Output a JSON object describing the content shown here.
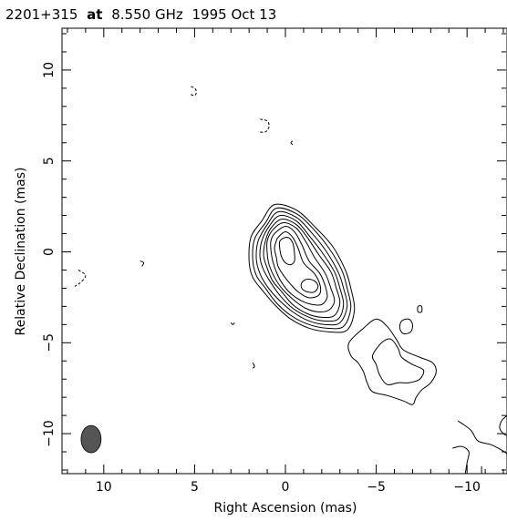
{
  "chart_data": {
    "type": "contour",
    "title": {
      "source": "2201+315",
      "connector": "at",
      "frequency": "8.550 GHz",
      "date": "1995 Oct 13"
    },
    "xlabel": "Right Ascension  (mas)",
    "ylabel": "Relative Declination  (mas)",
    "xlim": [
      12.3,
      -12.2
    ],
    "ylim": [
      -12.2,
      12.3
    ],
    "x_ticks": [
      10,
      5,
      0,
      -5,
      -10
    ],
    "x_tick_labels": [
      "10",
      "5",
      "0",
      "−5",
      "−10"
    ],
    "y_ticks": [
      10,
      5,
      0,
      -5,
      -10
    ],
    "y_tick_labels": [
      "10",
      "5",
      "0",
      "−5",
      "−10"
    ],
    "grid": false,
    "beam": {
      "x": 10.7,
      "y": -10.3,
      "major_mas": 1.5,
      "minor_mas": 1.1,
      "pa_deg": 0,
      "fill": "#555555"
    },
    "core_contours": [
      {
        "level": 1,
        "points": [
          [
            1.3,
            1.7
          ],
          [
            0.6,
            2.6
          ],
          [
            -0.6,
            2.3
          ],
          [
            -1.6,
            1.4
          ],
          [
            -2.6,
            0.3
          ],
          [
            -3.3,
            -1.0
          ],
          [
            -3.6,
            -2.0
          ],
          [
            -3.8,
            -3.2
          ],
          [
            -3.4,
            -4.3
          ],
          [
            -2.4,
            -4.4
          ],
          [
            -1.3,
            -4.2
          ],
          [
            -0.3,
            -3.7
          ],
          [
            0.5,
            -3.0
          ],
          [
            1.2,
            -2.2
          ],
          [
            1.8,
            -1.4
          ],
          [
            2.0,
            -0.5
          ],
          [
            1.9,
            0.8
          ]
        ]
      },
      {
        "level": 2,
        "points": [
          [
            1.1,
            1.6
          ],
          [
            0.5,
            2.4
          ],
          [
            -0.6,
            2.1
          ],
          [
            -1.5,
            1.3
          ],
          [
            -2.4,
            0.2
          ],
          [
            -3.1,
            -1.0
          ],
          [
            -3.4,
            -2.0
          ],
          [
            -3.6,
            -3.1
          ],
          [
            -3.2,
            -4.1
          ],
          [
            -2.3,
            -4.2
          ],
          [
            -1.3,
            -4.0
          ],
          [
            -0.3,
            -3.5
          ],
          [
            0.5,
            -2.8
          ],
          [
            1.1,
            -2.0
          ],
          [
            1.6,
            -1.3
          ],
          [
            1.8,
            -0.4
          ],
          [
            1.7,
            0.7
          ]
        ]
      },
      {
        "level": 3,
        "points": [
          [
            1.0,
            1.5
          ],
          [
            0.4,
            2.2
          ],
          [
            -0.6,
            1.9
          ],
          [
            -1.4,
            1.1
          ],
          [
            -2.2,
            0.1
          ],
          [
            -2.9,
            -1.1
          ],
          [
            -3.2,
            -2.0
          ],
          [
            -3.4,
            -3.0
          ],
          [
            -3.0,
            -3.9
          ],
          [
            -2.2,
            -4.0
          ],
          [
            -1.3,
            -3.8
          ],
          [
            -0.4,
            -3.3
          ],
          [
            0.4,
            -2.6
          ],
          [
            1.0,
            -1.9
          ],
          [
            1.4,
            -1.2
          ],
          [
            1.6,
            -0.4
          ],
          [
            1.5,
            0.6
          ]
        ]
      },
      {
        "level": 4,
        "points": [
          [
            0.9,
            1.4
          ],
          [
            0.3,
            2.0
          ],
          [
            -0.6,
            1.7
          ],
          [
            -1.3,
            0.9
          ],
          [
            -2.0,
            0.0
          ],
          [
            -2.7,
            -1.1
          ],
          [
            -3.0,
            -2.0
          ],
          [
            -3.2,
            -2.9
          ],
          [
            -2.9,
            -3.7
          ],
          [
            -2.1,
            -3.8
          ],
          [
            -1.3,
            -3.6
          ],
          [
            -0.4,
            -3.1
          ],
          [
            0.3,
            -2.4
          ],
          [
            0.8,
            -1.7
          ],
          [
            1.2,
            -1.0
          ],
          [
            1.4,
            -0.3
          ],
          [
            1.3,
            0.6
          ]
        ]
      },
      {
        "level": 5,
        "points": [
          [
            0.8,
            1.3
          ],
          [
            0.2,
            1.8
          ],
          [
            -0.6,
            1.5
          ],
          [
            -1.2,
            0.8
          ],
          [
            -1.8,
            -0.1
          ],
          [
            -2.5,
            -1.1
          ],
          [
            -2.8,
            -2.0
          ],
          [
            -3.0,
            -2.8
          ],
          [
            -2.7,
            -3.5
          ],
          [
            -2.0,
            -3.6
          ],
          [
            -1.2,
            -3.4
          ],
          [
            -0.4,
            -2.9
          ],
          [
            0.2,
            -2.2
          ],
          [
            0.7,
            -1.6
          ],
          [
            1.0,
            -0.9
          ],
          [
            1.2,
            -0.2
          ],
          [
            1.1,
            0.6
          ]
        ]
      },
      {
        "level": 6,
        "points": [
          [
            0.7,
            1.2
          ],
          [
            0.1,
            1.6
          ],
          [
            -0.6,
            1.3
          ],
          [
            -1.1,
            0.6
          ],
          [
            -1.6,
            -0.3
          ],
          [
            -2.2,
            -1.2
          ],
          [
            -2.5,
            -2.0
          ],
          [
            -2.7,
            -2.7
          ],
          [
            -2.4,
            -3.2
          ],
          [
            -1.8,
            -3.3
          ],
          [
            -1.1,
            -3.1
          ],
          [
            -0.4,
            -2.6
          ],
          [
            0.2,
            -2.0
          ],
          [
            0.6,
            -1.4
          ],
          [
            0.9,
            -0.7
          ],
          [
            1.0,
            -0.1
          ],
          [
            1.0,
            0.6
          ]
        ]
      },
      {
        "level": 7,
        "points": [
          [
            0.6,
            1.0
          ],
          [
            0.0,
            1.4
          ],
          [
            -0.5,
            1.1
          ],
          [
            -0.9,
            0.4
          ],
          [
            -1.3,
            -0.5
          ],
          [
            -1.9,
            -1.2
          ],
          [
            -2.2,
            -1.9
          ],
          [
            -2.3,
            -2.5
          ],
          [
            -2.0,
            -2.9
          ],
          [
            -1.5,
            -2.9
          ],
          [
            -0.9,
            -2.7
          ],
          [
            -0.3,
            -2.3
          ],
          [
            0.2,
            -1.7
          ],
          [
            0.5,
            -1.1
          ],
          [
            0.7,
            -0.5
          ],
          [
            0.8,
            0.1
          ],
          [
            0.8,
            0.6
          ]
        ]
      },
      {
        "level": 8,
        "points": [
          [
            0.4,
            0.8
          ],
          [
            0.0,
            1.1
          ],
          [
            -0.4,
            0.8
          ],
          [
            -0.7,
            0.2
          ],
          [
            -1.0,
            -0.6
          ],
          [
            -1.6,
            -1.2
          ],
          [
            -1.9,
            -1.8
          ],
          [
            -1.9,
            -2.3
          ],
          [
            -1.6,
            -2.5
          ],
          [
            -1.2,
            -2.5
          ],
          [
            -0.7,
            -2.2
          ],
          [
            -0.3,
            -1.8
          ],
          [
            0.1,
            -1.3
          ],
          [
            0.4,
            -0.8
          ],
          [
            0.5,
            -0.3
          ],
          [
            0.6,
            0.2
          ],
          [
            0.5,
            0.6
          ]
        ]
      },
      {
        "level": 9,
        "points": [
          [
            0.3,
            0.6
          ],
          [
            -0.1,
            0.8
          ],
          [
            -0.4,
            0.5
          ],
          [
            -0.5,
            -0.1
          ],
          [
            -0.5,
            -0.5
          ],
          [
            -0.3,
            -0.7
          ],
          [
            0.0,
            -0.6
          ],
          [
            0.2,
            -0.3
          ],
          [
            0.3,
            0.1
          ]
        ]
      },
      {
        "level": 9,
        "points": [
          [
            -1.2,
            -1.5
          ],
          [
            -1.6,
            -1.6
          ],
          [
            -1.8,
            -1.9
          ],
          [
            -1.6,
            -2.2
          ],
          [
            -1.2,
            -2.2
          ],
          [
            -0.9,
            -2.0
          ],
          [
            -0.9,
            -1.7
          ]
        ]
      }
    ],
    "jet_contours": [
      {
        "level": 1,
        "points": [
          [
            -3.5,
            -5.0
          ],
          [
            -4.3,
            -4.2
          ],
          [
            -5.0,
            -3.7
          ],
          [
            -5.6,
            -4.1
          ],
          [
            -6.1,
            -4.8
          ],
          [
            -6.5,
            -5.4
          ],
          [
            -7.4,
            -5.8
          ],
          [
            -8.1,
            -6.1
          ],
          [
            -8.3,
            -6.6
          ],
          [
            -8.0,
            -7.2
          ],
          [
            -7.5,
            -7.6
          ],
          [
            -7.2,
            -8.0
          ],
          [
            -7.0,
            -8.4
          ],
          [
            -6.5,
            -8.2
          ],
          [
            -5.6,
            -7.9
          ],
          [
            -4.8,
            -7.7
          ],
          [
            -4.5,
            -7.2
          ],
          [
            -4.3,
            -6.6
          ],
          [
            -4.0,
            -6.1
          ],
          [
            -3.6,
            -5.7
          ]
        ]
      },
      {
        "level": 2,
        "points": [
          [
            -4.8,
            -5.7
          ],
          [
            -5.3,
            -5.0
          ],
          [
            -5.8,
            -4.8
          ],
          [
            -6.2,
            -5.3
          ],
          [
            -6.4,
            -5.8
          ],
          [
            -7.0,
            -6.2
          ],
          [
            -7.6,
            -6.5
          ],
          [
            -7.4,
            -7.0
          ],
          [
            -6.8,
            -7.2
          ],
          [
            -6.2,
            -7.2
          ],
          [
            -5.6,
            -7.3
          ],
          [
            -5.2,
            -6.8
          ],
          [
            -5.0,
            -6.2
          ]
        ]
      },
      {
        "level": 3,
        "points": [
          [
            -6.4,
            -3.8
          ],
          [
            -6.8,
            -3.7
          ],
          [
            -7.0,
            -4.0
          ],
          [
            -6.9,
            -4.4
          ],
          [
            -6.5,
            -4.5
          ],
          [
            -6.3,
            -4.2
          ]
        ]
      },
      {
        "level": 4,
        "points": [
          [
            -7.3,
            -3.0
          ],
          [
            -7.5,
            -3.0
          ],
          [
            -7.5,
            -3.3
          ],
          [
            -7.3,
            -3.3
          ]
        ]
      }
    ],
    "edge_contours": [
      {
        "level": 1,
        "points": [
          [
            -9.5,
            -9.3
          ],
          [
            -10.2,
            -9.8
          ],
          [
            -10.6,
            -10.4
          ],
          [
            -11.3,
            -10.6
          ],
          [
            -11.9,
            -10.9
          ],
          [
            -12.2,
            -11.1
          ]
        ]
      },
      {
        "level": 2,
        "points": [
          [
            -9.2,
            -10.8
          ],
          [
            -9.7,
            -10.7
          ],
          [
            -10.1,
            -11.0
          ],
          [
            -10.0,
            -11.6
          ],
          [
            -9.9,
            -12.2
          ]
        ]
      },
      {
        "level": 3,
        "points": [
          [
            -10.8,
            -11.8
          ],
          [
            -10.8,
            -12.2
          ]
        ]
      },
      {
        "level": 4,
        "points": [
          [
            -12.2,
            -9.0
          ],
          [
            -11.9,
            -9.3
          ],
          [
            -11.8,
            -9.7
          ],
          [
            -12.0,
            -10.0
          ],
          [
            -12.2,
            -10.1
          ]
        ]
      }
    ],
    "negative_contours": [
      {
        "points": [
          [
            5.2,
            9.1
          ],
          [
            5.0,
            9.0
          ],
          [
            4.9,
            8.8
          ],
          [
            5.0,
            8.6
          ],
          [
            5.3,
            8.7
          ]
        ]
      },
      {
        "points": [
          [
            1.4,
            7.3
          ],
          [
            1.0,
            7.2
          ],
          [
            0.9,
            6.9
          ],
          [
            1.1,
            6.6
          ],
          [
            1.5,
            6.6
          ]
        ]
      },
      {
        "points": [
          [
            11.4,
            -1.0
          ],
          [
            11.0,
            -1.3
          ],
          [
            11.3,
            -1.7
          ],
          [
            11.6,
            -1.9
          ]
        ]
      }
    ],
    "isolated_contours": [
      {
        "points": [
          [
            -0.4,
            6.1
          ],
          [
            -0.3,
            6.0
          ],
          [
            -0.4,
            5.9
          ]
        ]
      },
      {
        "points": [
          [
            8.0,
            -0.5
          ],
          [
            7.8,
            -0.6
          ],
          [
            7.9,
            -0.8
          ]
        ]
      },
      {
        "points": [
          [
            3.0,
            -3.9
          ],
          [
            2.9,
            -4.0
          ],
          [
            2.8,
            -3.9
          ]
        ]
      },
      {
        "points": [
          [
            1.8,
            -6.1
          ],
          [
            1.7,
            -6.3
          ],
          [
            1.8,
            -6.4
          ]
        ]
      }
    ]
  }
}
